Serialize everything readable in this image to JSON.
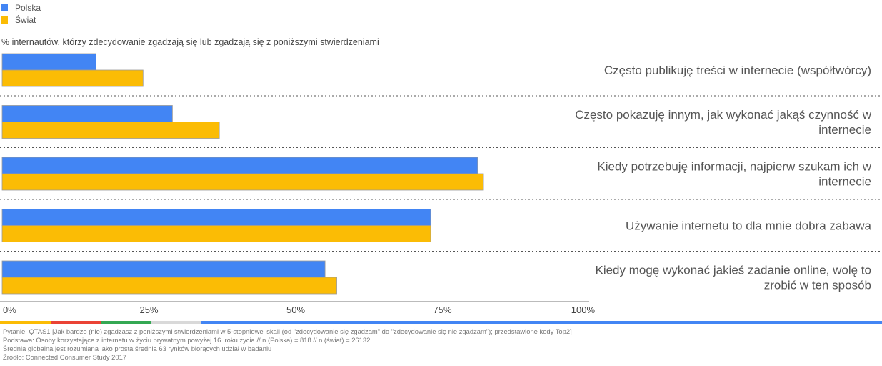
{
  "colors": {
    "polska": "#4285F4",
    "swiat": "#FBBC05",
    "accent_bar": [
      "#FBBC05",
      "#EA4335",
      "#34A853",
      "#D9D9D9",
      "#4285F4"
    ]
  },
  "legend": [
    {
      "label": "Polska",
      "color": "#4285F4"
    },
    {
      "label": "Świat",
      "color": "#FBBC05"
    }
  ],
  "subtitle": "% internautów, którzy zdecydowanie zgadzają się lub zgadzają się z poniższymi stwierdzeniami",
  "chart_data": {
    "type": "bar",
    "orientation": "horizontal",
    "title": "% internautów, którzy zdecydowanie zgadzają się lub zgadzają się z poniższymi stwierdzeniami",
    "categories": [
      [
        "Często publikuję treści w internecie (współtwórcy)"
      ],
      [
        "Często pokazuję innym, jak wykonać jakąś czynność w",
        "internecie"
      ],
      [
        "Kiedy potrzebuję informacji, najpierw szukam ich w",
        "internecie"
      ],
      [
        "Używanie internetu to dla mnie dobra zabawa"
      ],
      [
        "Kiedy mogę wykonać jakieś zadanie online, wolę to",
        "zrobić w ten sposób"
      ]
    ],
    "series": [
      {
        "name": "Polska",
        "color": "#4285F4",
        "values": [
          16,
          29,
          81,
          73,
          55
        ]
      },
      {
        "name": "Świat",
        "color": "#FBBC05",
        "values": [
          24,
          37,
          82,
          73,
          57
        ]
      }
    ],
    "xlim": [
      0,
      100
    ],
    "xticks": [
      "0%",
      "25%",
      "50%",
      "75%",
      "100%"
    ],
    "grid": false,
    "legend_position": "top-left"
  },
  "footer": [
    "Pytanie: QTAS1 [Jak bardzo (nie) zgadzasz z poniższymi stwierdzeniami w 5-stopniowej skali (od \"zdecydowanie się zgadzam\" do \"zdecydowanie się nie zgadzam\"); przedstawione kody Top2]",
    "Podstawa: Osoby korzystające z internetu w życiu prywatnym powyżej 16. roku życia // n (Polska) = 818 // n (świat) = 26132",
    "Średnia globalna jest rozumiana jako prosta średnia 63 rynków biorących udział w badaniu",
    "Źródło: Connected Consumer Study 2017"
  ]
}
